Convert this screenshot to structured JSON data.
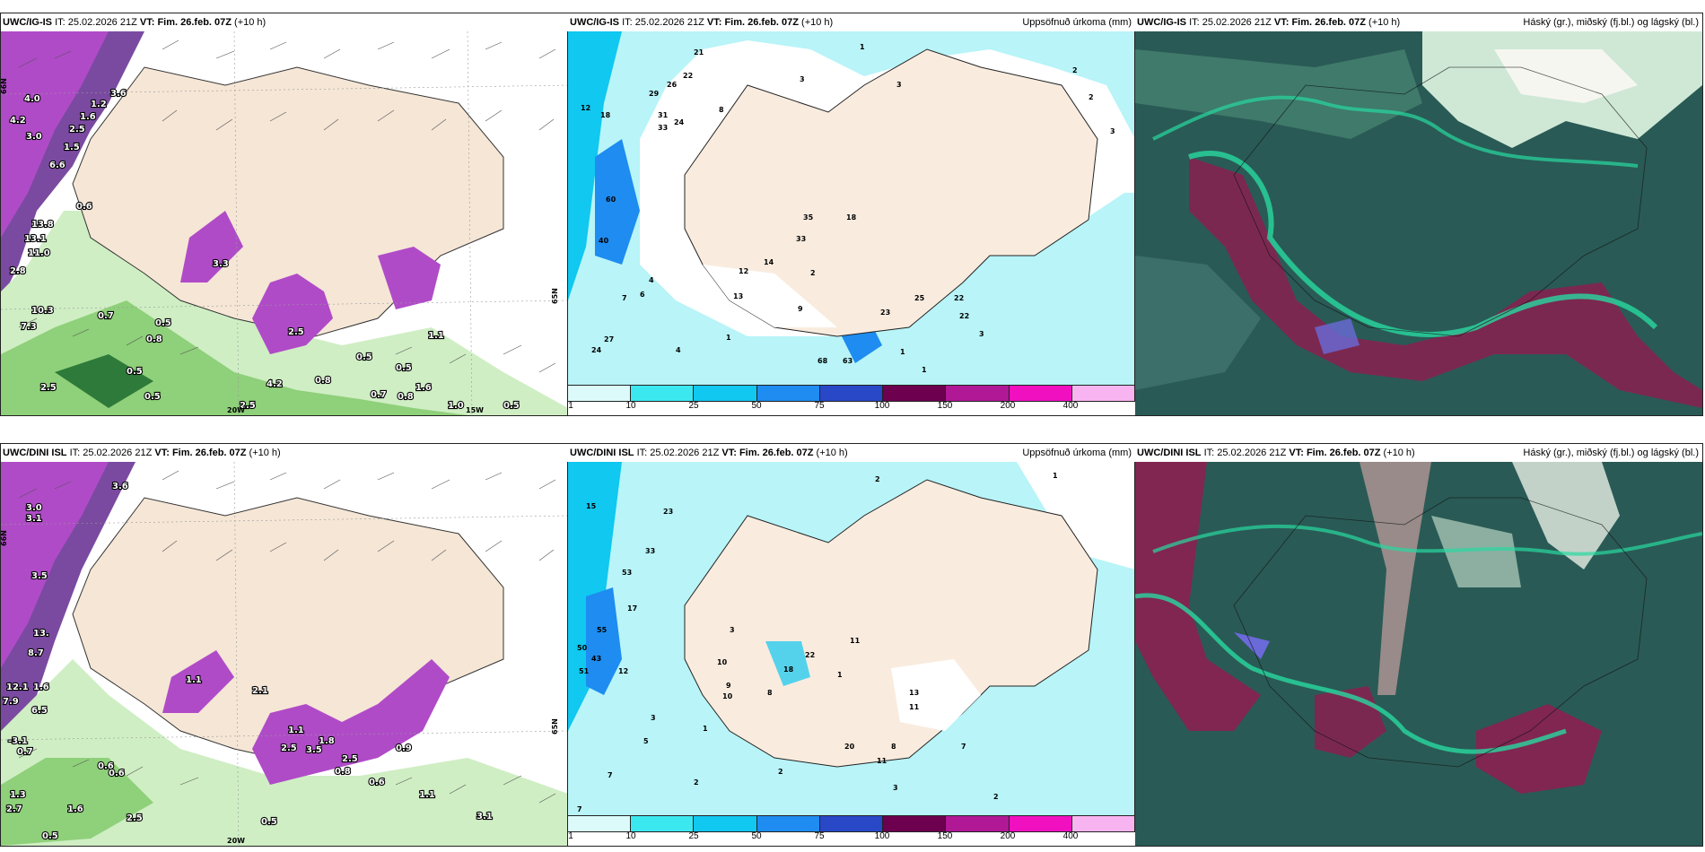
{
  "rows": [
    {
      "model": "UWC/IG-IS",
      "panels": [
        {
          "it_label": "IT:",
          "it": "25.02.2026 21Z",
          "vt_label": "VT:",
          "vt": "Fim. 26.feb. 07Z",
          "offset": "(+10 h)",
          "right": ""
        },
        {
          "it_label": "IT:",
          "it": "25.02.2026 21Z",
          "vt_label": "VT:",
          "vt": "Fim. 26.feb. 07Z",
          "offset": "(+10 h)",
          "right": "Uppsöfnuð úrkoma (mm)"
        },
        {
          "it_label": "IT:",
          "it": "25.02.2026 21Z",
          "vt_label": "VT:",
          "vt": "Fim. 26.feb. 07Z",
          "offset": "(+10 h)",
          "right": "Háský (gr.), miðský (fj.bl.) og lágský (bl.)"
        }
      ],
      "temp_labels": [
        "4.0",
        "4.2",
        "3.0",
        "3.6",
        "1.2",
        "1.6",
        "2.5",
        "1.5",
        "6.6",
        "13.8",
        "13.1",
        "11.0",
        "2.8",
        "10.3",
        "7.3",
        "0.6",
        "0.7",
        "0.5",
        "0.8",
        "0.5",
        "0.5",
        "3.3",
        "2.5",
        "0.8",
        "0.5",
        "0.7",
        "0.5",
        "0.8",
        "1.0",
        "0.5",
        "1.1",
        "1.6",
        "4.2",
        "2.5",
        "2.5"
      ],
      "precip_labels": [
        "1",
        "21",
        "22",
        "26",
        "29",
        "31",
        "18",
        "12",
        "33",
        "24",
        "8",
        "3",
        "60",
        "40",
        "3",
        "2",
        "2",
        "3",
        "35",
        "18",
        "33",
        "14",
        "12",
        "13",
        "4",
        "7",
        "6",
        "24",
        "27",
        "1",
        "4",
        "1",
        "2",
        "23",
        "25",
        "9",
        "68",
        "63",
        "1",
        "3",
        "22",
        "22"
      ],
      "grid_labels": [
        "66N",
        "65N",
        "20W",
        "15W"
      ]
    },
    {
      "model": "UWC/DINI ISL",
      "panels": [
        {
          "it_label": "IT:",
          "it": "25.02.2026 21Z",
          "vt_label": "VT:",
          "vt": "Fim. 26.feb. 07Z",
          "offset": "(+10 h)",
          "right": ""
        },
        {
          "it_label": "IT:",
          "it": "25.02.2026 21Z",
          "vt_label": "VT:",
          "vt": "Fim. 26.feb. 07Z",
          "offset": "(+10 h)",
          "right": "Uppsöfnuð úrkoma (mm)"
        },
        {
          "it_label": "IT:",
          "it": "25.02.2026 21Z",
          "vt_label": "VT:",
          "vt": "Fim. 26.feb. 07Z",
          "offset": "(+10 h)",
          "right": "Háský (gr.), miðský (fj.bl.) og lágský (bl.)"
        }
      ],
      "temp_labels": [
        "3.6",
        "3.0",
        "3.1",
        "3.5",
        "13.",
        "8.7",
        "12.1",
        "7.9",
        "1.6",
        "6.5",
        "-3.1",
        "0.7",
        "1.3",
        "2.7",
        "1.6",
        "2.5",
        "1.1",
        "0.6",
        "0.5",
        "0.6",
        "1.1",
        "2.5",
        "3.5",
        "2.5",
        "1.8",
        "0.6",
        "0.5",
        "3.1",
        "2.1",
        "0.8",
        "1.1",
        "0.9"
      ],
      "precip_labels": [
        "2",
        "1",
        "15",
        "23",
        "33",
        "53",
        "17",
        "55",
        "50",
        "43",
        "51",
        "12",
        "3",
        "10",
        "9",
        "10",
        "22",
        "18",
        "8",
        "11",
        "1",
        "13",
        "11",
        "20",
        "11",
        "5",
        "7",
        "3",
        "1",
        "2",
        "2",
        "8",
        "7",
        "7",
        "3",
        "2"
      ],
      "grid_labels": [
        "66N",
        "65N",
        "20W"
      ]
    }
  ],
  "legend": {
    "ticks": [
      "1",
      "10",
      "25",
      "50",
      "75",
      "100",
      "150",
      "200",
      "400"
    ],
    "colors": [
      "#dcfafa",
      "#3ce8f0",
      "#10c8f0",
      "#1e8cf0",
      "#2848c8",
      "#6e0050",
      "#b01896",
      "#f010c0",
      "#f8b4f0"
    ]
  },
  "colors": {
    "land": "#f5e6d6",
    "temp_magenta": "#b04bc8",
    "temp_green": "#8fd07a",
    "precip_cyan": "#b8f4f8",
    "cloud_dark": "#2a5a55"
  }
}
